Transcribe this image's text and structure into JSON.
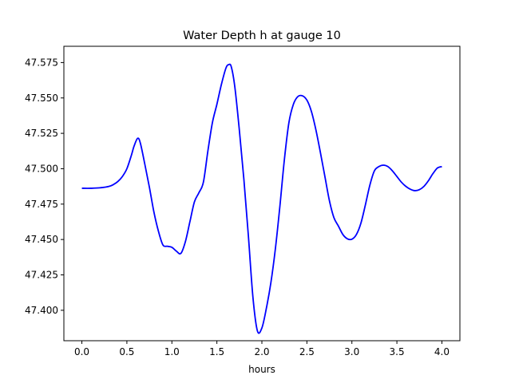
{
  "chart_data": {
    "type": "line",
    "title": "Water Depth h at gauge 10",
    "xlabel": "hours",
    "ylabel": "",
    "xlim": [
      -0.2,
      4.2
    ],
    "ylim": [
      47.3785,
      47.5865
    ],
    "xticks": [
      0.0,
      0.5,
      1.0,
      1.5,
      2.0,
      2.5,
      3.0,
      3.5,
      4.0
    ],
    "xtick_labels": [
      "0.0",
      "0.5",
      "1.0",
      "1.5",
      "2.0",
      "2.5",
      "3.0",
      "3.5",
      "4.0"
    ],
    "yticks": [
      47.4,
      47.425,
      47.45,
      47.475,
      47.5,
      47.525,
      47.55,
      47.575
    ],
    "ytick_labels": [
      "47.400",
      "47.425",
      "47.450",
      "47.475",
      "47.500",
      "47.525",
      "47.550",
      "47.575"
    ],
    "grid": false,
    "series": [
      {
        "color": "#0000ff",
        "x": [
          0.0,
          0.1,
          0.2,
          0.3,
          0.35,
          0.4,
          0.45,
          0.5,
          0.55,
          0.58,
          0.62,
          0.65,
          0.7,
          0.75,
          0.8,
          0.85,
          0.9,
          0.95,
          1.0,
          1.05,
          1.1,
          1.15,
          1.2,
          1.25,
          1.3,
          1.35,
          1.4,
          1.45,
          1.5,
          1.55,
          1.6,
          1.63,
          1.66,
          1.7,
          1.75,
          1.8,
          1.85,
          1.9,
          1.95,
          2.0,
          2.05,
          2.1,
          2.15,
          2.2,
          2.25,
          2.3,
          2.35,
          2.4,
          2.45,
          2.5,
          2.55,
          2.6,
          2.65,
          2.7,
          2.75,
          2.8,
          2.85,
          2.9,
          2.95,
          3.0,
          3.05,
          3.1,
          3.15,
          3.2,
          3.25,
          3.3,
          3.35,
          3.4,
          3.45,
          3.5,
          3.55,
          3.6,
          3.65,
          3.7,
          3.75,
          3.8,
          3.85,
          3.9,
          3.95,
          4.0
        ],
        "y": [
          47.4862,
          47.4862,
          47.4865,
          47.4875,
          47.4888,
          47.491,
          47.4945,
          47.5,
          47.5095,
          47.516,
          47.5215,
          47.518,
          47.503,
          47.487,
          47.4695,
          47.456,
          47.4462,
          47.4452,
          47.4445,
          47.4418,
          47.4402,
          47.4485,
          47.4625,
          47.4765,
          47.483,
          47.4905,
          47.5125,
          47.5325,
          47.5455,
          47.5595,
          47.571,
          47.5735,
          47.572,
          47.5575,
          47.527,
          47.4925,
          47.4525,
          47.4095,
          47.3855,
          47.3875,
          47.4015,
          47.4195,
          47.4435,
          47.4735,
          47.5065,
          47.5325,
          47.5455,
          47.551,
          47.5515,
          47.5485,
          47.5405,
          47.5275,
          47.5115,
          47.4945,
          47.4775,
          47.4655,
          47.4595,
          47.4535,
          47.4505,
          47.4502,
          47.4535,
          47.4615,
          47.4745,
          47.4885,
          47.4985,
          47.5015,
          47.5025,
          47.5015,
          47.4985,
          47.4945,
          47.4905,
          47.4875,
          47.4855,
          47.4845,
          47.4852,
          47.4875,
          47.4915,
          47.4965,
          47.5005,
          47.5015
        ]
      }
    ]
  }
}
